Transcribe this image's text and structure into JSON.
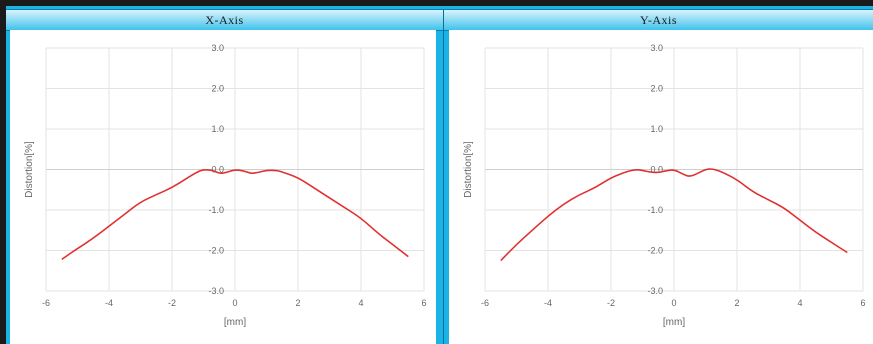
{
  "header": {
    "left_title": "X-Axis",
    "right_title": "Y-Axis"
  },
  "chart_data": [
    {
      "type": "line",
      "title": "X-Axis",
      "xlabel": "[mm]",
      "ylabel": "Distortion[%]",
      "xlim": [
        -6,
        6
      ],
      "ylim": [
        -3,
        3
      ],
      "xticks": [
        "-6",
        "-4",
        "-2",
        "0",
        "2",
        "4",
        "6"
      ],
      "yticks": [
        "3.0",
        "2.0",
        "1.0",
        "0.0",
        "-1.0",
        "-2.0",
        "-3.0"
      ],
      "grid": true,
      "series": [
        {
          "color": "#e03030",
          "x": [
            -5.5,
            -5.0,
            -4.5,
            -4.0,
            -3.5,
            -3.0,
            -2.5,
            -2.0,
            -1.5,
            -1.2,
            -1.0,
            -0.7,
            -0.5,
            -0.3,
            0.0,
            0.3,
            0.5,
            0.7,
            1.0,
            1.3,
            1.5,
            2.0,
            2.5,
            3.0,
            3.5,
            4.0,
            4.5,
            5.0,
            5.5
          ],
          "y": [
            -2.22,
            -1.95,
            -1.7,
            -1.4,
            -1.1,
            -0.8,
            -0.62,
            -0.45,
            -0.2,
            -0.06,
            0.0,
            -0.02,
            -0.1,
            -0.08,
            0.0,
            -0.04,
            -0.1,
            -0.08,
            -0.02,
            -0.02,
            -0.06,
            -0.2,
            -0.45,
            -0.7,
            -0.95,
            -1.2,
            -1.55,
            -1.85,
            -2.15
          ]
        }
      ]
    },
    {
      "type": "line",
      "title": "Y-Axis",
      "xlabel": "[mm]",
      "ylabel": "Distortion[%]",
      "xlim": [
        -6,
        6
      ],
      "ylim": [
        -3,
        3
      ],
      "xticks": [
        "-6",
        "-4",
        "-2",
        "0",
        "2",
        "4",
        "6"
      ],
      "yticks": [
        "3.0",
        "2.0",
        "1.0",
        "0.0",
        "-1.0",
        "-2.0",
        "-3.0"
      ],
      "grid": true,
      "series": [
        {
          "color": "#e03030",
          "x": [
            -5.5,
            -5.0,
            -4.5,
            -4.0,
            -3.5,
            -3.0,
            -2.5,
            -2.0,
            -1.5,
            -1.2,
            -1.0,
            -0.8,
            -0.5,
            -0.3,
            0.0,
            0.3,
            0.5,
            0.8,
            1.0,
            1.2,
            1.5,
            2.0,
            2.5,
            3.0,
            3.5,
            4.0,
            4.5,
            5.0,
            5.5
          ],
          "y": [
            -2.25,
            -1.85,
            -1.5,
            -1.15,
            -0.85,
            -0.62,
            -0.45,
            -0.2,
            -0.05,
            0.0,
            -0.02,
            -0.06,
            -0.08,
            -0.04,
            0.0,
            -0.12,
            -0.18,
            -0.08,
            0.0,
            0.02,
            -0.05,
            -0.25,
            -0.55,
            -0.75,
            -0.95,
            -1.25,
            -1.55,
            -1.8,
            -2.05
          ]
        }
      ]
    }
  ]
}
